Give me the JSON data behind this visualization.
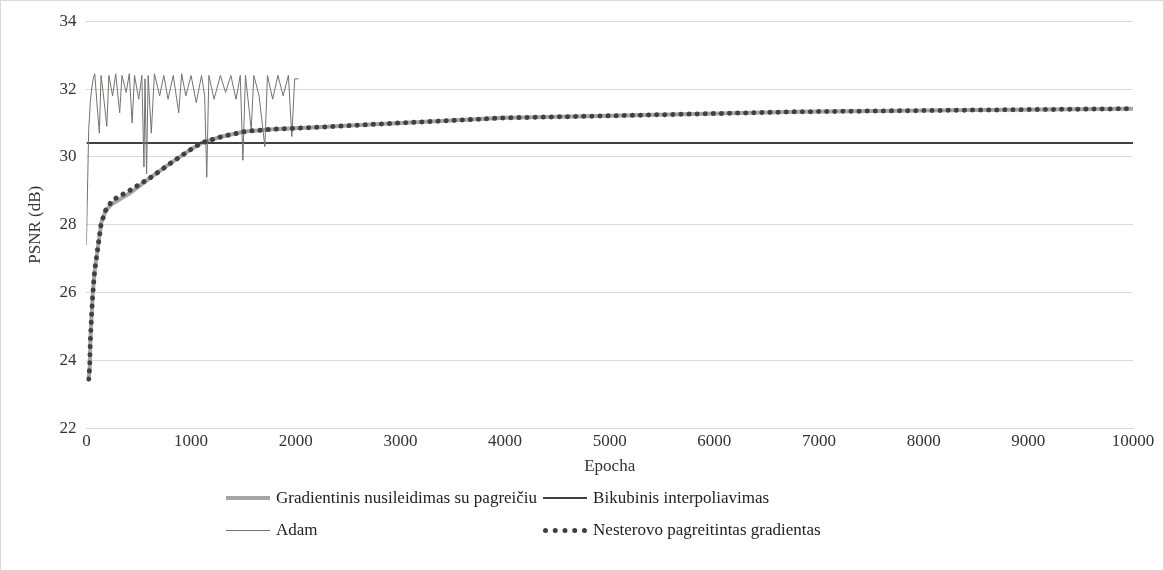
{
  "chart_data": {
    "type": "line",
    "xlabel": "Epocha",
    "ylabel": "PSNR (dB)",
    "xlim": [
      0,
      10000
    ],
    "xticks": [
      0,
      1000,
      2000,
      3000,
      4000,
      5000,
      6000,
      7000,
      8000,
      9000,
      10000
    ],
    "ylim": [
      22,
      34
    ],
    "yticks": [
      22,
      24,
      26,
      28,
      30,
      32,
      34
    ],
    "grid": "y",
    "legend": "bottom",
    "marker": "none",
    "series": [
      {
        "name": "Gradientinis nusileidimas su pagreičiu",
        "color": "#a6a6a6",
        "line_style": "solid",
        "x": [
          22,
          32,
          37,
          48,
          61,
          80,
          110,
          142,
          184,
          248,
          425,
          618,
          812,
          988,
          1100,
          1295,
          1518,
          1745,
          2193,
          3000,
          4000,
          5000,
          6800,
          8500,
          10000
        ],
        "values": [
          23.45,
          23.82,
          24.52,
          25.23,
          25.96,
          26.67,
          27.34,
          28.05,
          28.42,
          28.62,
          28.95,
          29.4,
          29.83,
          30.2,
          30.41,
          30.6,
          30.75,
          30.81,
          30.87,
          31.0,
          31.15,
          31.21,
          31.33,
          31.38,
          31.42
        ]
      },
      {
        "name": "Bikubinis interpoliavimas",
        "color": "#404040",
        "line_style": "solid",
        "x": [
          0,
          10000
        ],
        "values": [
          30.41,
          30.41
        ]
      },
      {
        "name": "Adam",
        "color": "#767171",
        "line_style": "solid",
        "x": [
          0,
          13,
          22,
          30,
          37,
          50,
          65,
          80,
          100,
          124,
          140,
          160,
          195,
          215,
          250,
          280,
          318,
          340,
          380,
          410,
          437,
          460,
          500,
          530,
          550,
          560,
          575,
          590,
          620,
          650,
          700,
          740,
          780,
          830,
          882,
          910,
          950,
          1000,
          1050,
          1100,
          1130,
          1150,
          1170,
          1220,
          1280,
          1330,
          1380,
          1430,
          1470,
          1495,
          1520,
          1575,
          1600,
          1650,
          1705,
          1730,
          1780,
          1830,
          1880,
          1930,
          1963,
          1990,
          2027
        ],
        "values": [
          27.4,
          29.4,
          30.8,
          31.2,
          31.6,
          32.0,
          32.3,
          32.45,
          31.6,
          30.7,
          32.4,
          31.9,
          30.9,
          32.4,
          31.8,
          32.45,
          31.3,
          32.4,
          31.9,
          32.45,
          31.0,
          32.4,
          31.7,
          32.4,
          29.7,
          32.3,
          29.5,
          32.4,
          30.7,
          32.45,
          31.8,
          32.4,
          31.7,
          32.4,
          31.3,
          32.45,
          31.8,
          32.4,
          31.6,
          32.4,
          31.8,
          29.4,
          32.4,
          31.7,
          32.4,
          31.9,
          32.4,
          31.7,
          32.4,
          29.9,
          32.4,
          30.8,
          32.4,
          31.8,
          30.3,
          32.4,
          31.7,
          32.4,
          31.8,
          32.4,
          30.6,
          32.3,
          32.3
        ]
      },
      {
        "name": "Nesterovo pagreitintas gradientas",
        "color": "#404040",
        "line_style": "dotted",
        "x": [
          22,
          32,
          37,
          48,
          61,
          80,
          110,
          142,
          184,
          248,
          425,
          618,
          812,
          988,
          1100,
          1295,
          1518,
          1745,
          2193,
          3000,
          4000,
          5000,
          6800,
          8500,
          10000
        ],
        "values": [
          23.45,
          23.82,
          24.52,
          25.23,
          25.96,
          26.67,
          27.34,
          28.05,
          28.42,
          28.72,
          29.03,
          29.4,
          29.83,
          30.2,
          30.41,
          30.6,
          30.75,
          30.81,
          30.87,
          31.0,
          31.15,
          31.21,
          31.33,
          31.38,
          31.42
        ]
      }
    ]
  }
}
